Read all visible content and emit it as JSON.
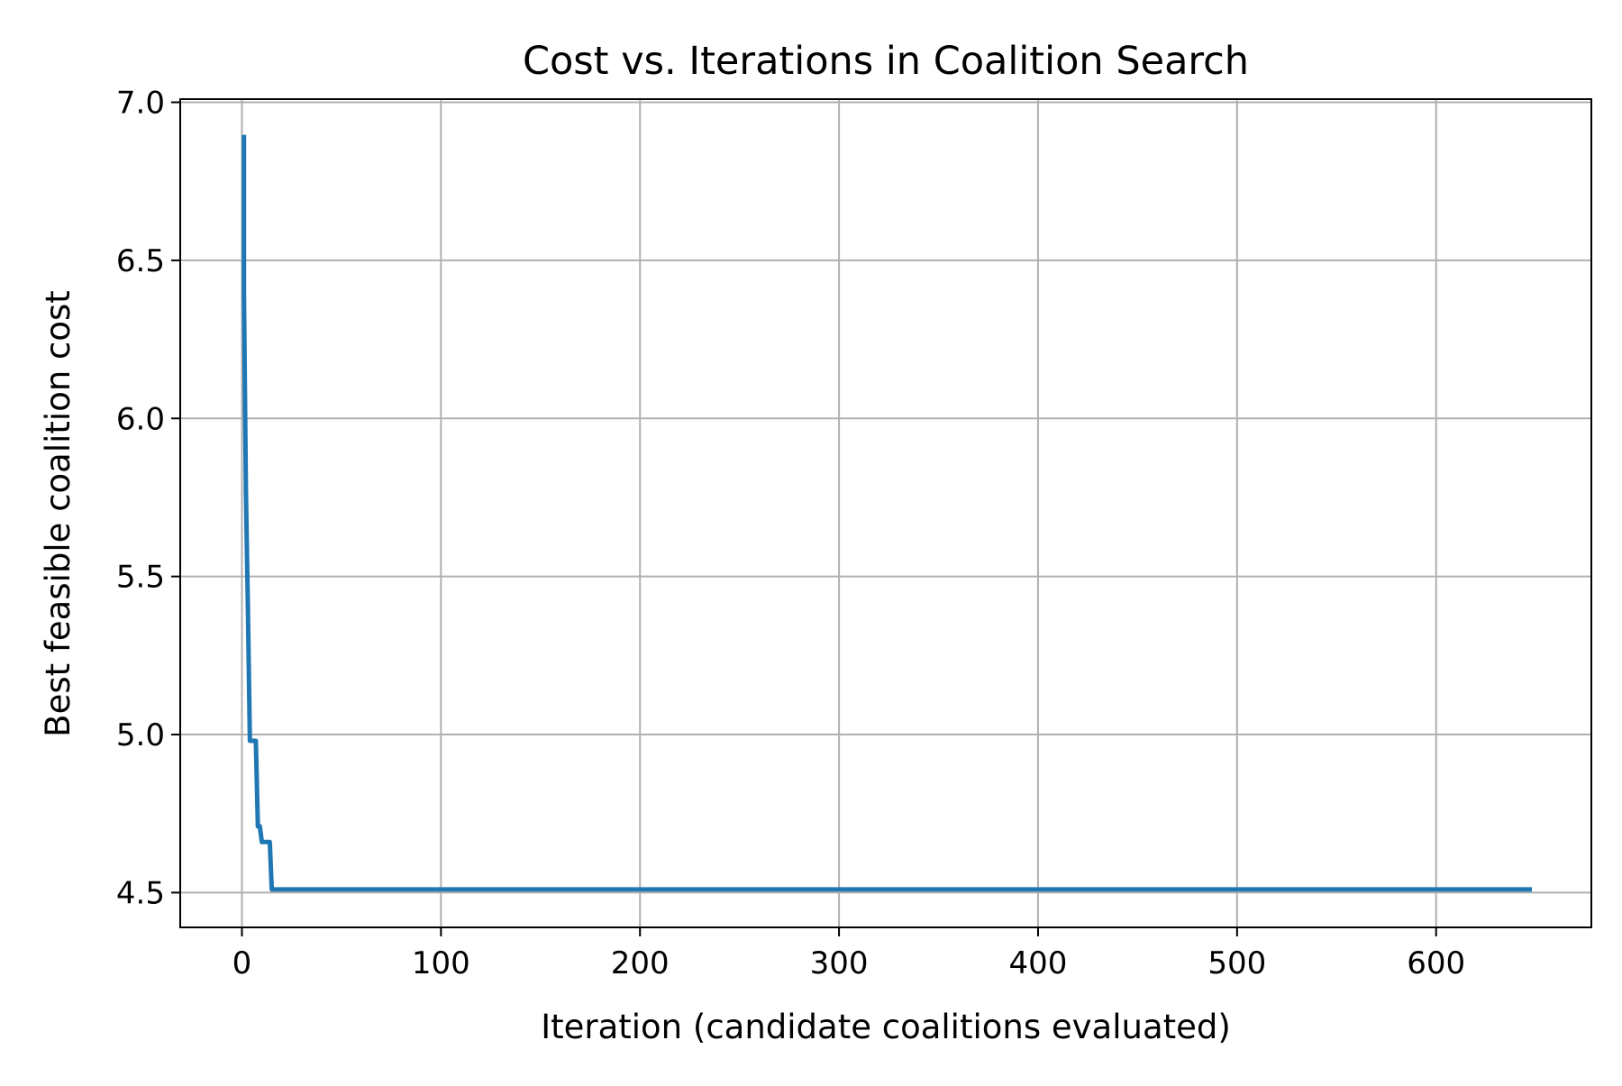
{
  "chart_data": {
    "type": "line",
    "title": "Cost vs. Iterations in Coalition Search",
    "xlabel": "Iteration (candidate coalitions evaluated)",
    "ylabel": "Best feasible coalition cost",
    "xlim": [
      -31,
      678
    ],
    "ylim": [
      4.39,
      7.01
    ],
    "xticks": [
      0,
      100,
      200,
      300,
      400,
      500,
      600
    ],
    "xtick_labels": [
      "0",
      "100",
      "200",
      "300",
      "400",
      "500",
      "600"
    ],
    "yticks": [
      4.5,
      5.0,
      5.5,
      6.0,
      6.5,
      7.0
    ],
    "ytick_labels": [
      "4.5",
      "5.0",
      "5.5",
      "6.0",
      "6.5",
      "7.0"
    ],
    "grid": true,
    "legend": "none",
    "series": [
      {
        "color": "#1f77b4",
        "x": [
          1,
          1,
          2,
          2,
          3,
          4,
          4,
          5,
          6,
          7,
          8,
          8,
          9,
          10,
          11,
          14,
          15,
          647
        ],
        "y": [
          6.89,
          6.4,
          5.77,
          5.77,
          5.4,
          4.98,
          4.98,
          4.98,
          4.98,
          4.98,
          4.72,
          4.71,
          4.71,
          4.66,
          4.66,
          4.66,
          4.51,
          4.51
        ]
      }
    ]
  }
}
